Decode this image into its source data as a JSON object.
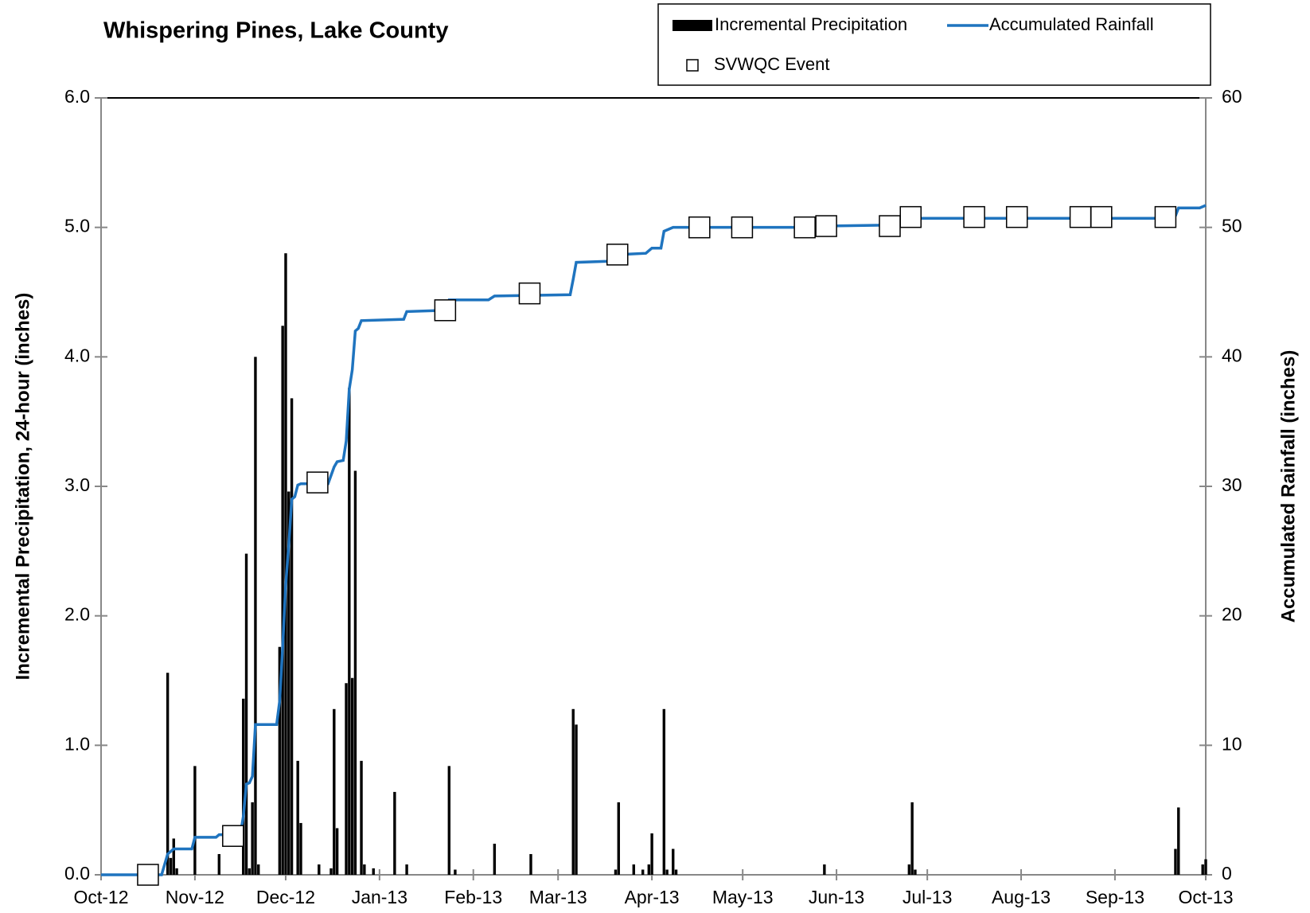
{
  "chart_data": {
    "type": "combo",
    "title": "Whispering Pines, Lake County",
    "y_label": "Incremental Precipitation, 24-hour (inches)",
    "y2_label": "Accumulated Rainfall (inches)",
    "xlim": [
      0,
      365
    ],
    "xticks": [
      {
        "value": 0,
        "label": "Oct-12"
      },
      {
        "value": 31,
        "label": "Nov-12"
      },
      {
        "value": 61,
        "label": "Dec-12"
      },
      {
        "value": 92,
        "label": "Jan-13"
      },
      {
        "value": 123,
        "label": "Feb-13"
      },
      {
        "value": 151,
        "label": "Mar-13"
      },
      {
        "value": 182,
        "label": "Apr-13"
      },
      {
        "value": 212,
        "label": "May-13"
      },
      {
        "value": 243,
        "label": "Jun-13"
      },
      {
        "value": 273,
        "label": "Jul-13"
      },
      {
        "value": 304,
        "label": "Aug-13"
      },
      {
        "value": 335,
        "label": "Sep-13"
      },
      {
        "value": 365,
        "label": "Oct-13"
      }
    ],
    "ylim": [
      0,
      6
    ],
    "yticks": [
      {
        "value": 0,
        "label": "0.0"
      },
      {
        "value": 1,
        "label": "1.0"
      },
      {
        "value": 2,
        "label": "2.0"
      },
      {
        "value": 3,
        "label": "3.0"
      },
      {
        "value": 4,
        "label": "4.0"
      },
      {
        "value": 5,
        "label": "5.0"
      },
      {
        "value": 6,
        "label": "6.0"
      }
    ],
    "y2lim": [
      0,
      60
    ],
    "y2ticks": [
      0,
      10,
      20,
      30,
      40,
      50,
      60
    ],
    "series": [
      {
        "name": "Incremental Precipitation",
        "type": "bar",
        "color": "#000000",
        "x": [
          22,
          23,
          24,
          25,
          31,
          39,
          47,
          48,
          49,
          50,
          51,
          52,
          59,
          60,
          61,
          62,
          63,
          65,
          66,
          72,
          76,
          77,
          78,
          81,
          82,
          83,
          84,
          86,
          87,
          90,
          97,
          101,
          115,
          117,
          130,
          142,
          156,
          157,
          170,
          171,
          176,
          179,
          181,
          182,
          186,
          187,
          189,
          190,
          239,
          267,
          268,
          269,
          355,
          356,
          364,
          365
        ],
        "values": [
          1.56,
          0.13,
          0.28,
          0.05,
          0.84,
          0.16,
          1.36,
          2.48,
          0.05,
          0.56,
          4.0,
          0.08,
          1.76,
          4.24,
          4.8,
          2.96,
          3.68,
          0.88,
          0.4,
          0.08,
          0.05,
          1.28,
          0.36,
          1.48,
          3.76,
          1.52,
          3.12,
          0.88,
          0.08,
          0.05,
          0.64,
          0.08,
          0.84,
          0.04,
          0.24,
          0.16,
          1.28,
          1.16,
          0.04,
          0.56,
          0.08,
          0.04,
          0.08,
          0.32,
          1.28,
          0.04,
          0.2,
          0.04,
          0.08,
          0.08,
          0.56,
          0.04,
          0.2,
          0.52,
          0.08,
          0.12
        ]
      },
      {
        "name": "Accumulated Rainfall",
        "type": "line",
        "axis": "y2",
        "color": "#1f74bf",
        "x": [
          0,
          20,
          22,
          24,
          30,
          31,
          38,
          39,
          46,
          47,
          48,
          49,
          50,
          51,
          58,
          59,
          60,
          61,
          62,
          63,
          64,
          65,
          66,
          75,
          77,
          78,
          80,
          81,
          82,
          83,
          84,
          85,
          86,
          100,
          101,
          114,
          115,
          128,
          130,
          155,
          156,
          157,
          170,
          171,
          180,
          182,
          185,
          186,
          189,
          238,
          239,
          267,
          268,
          354,
          355,
          356,
          363,
          365
        ],
        "values": [
          0,
          0,
          1.6,
          2.0,
          2.0,
          2.9,
          2.9,
          3.1,
          3.1,
          4.5,
          7.0,
          7.1,
          7.6,
          11.6,
          11.6,
          13.4,
          17.6,
          22.4,
          25.4,
          29.0,
          29.2,
          30.1,
          30.2,
          30.2,
          31.5,
          31.9,
          32.0,
          33.5,
          37.5,
          39.0,
          42.0,
          42.2,
          42.8,
          42.9,
          43.5,
          43.6,
          44.4,
          44.4,
          44.7,
          44.8,
          46.0,
          47.3,
          47.4,
          47.9,
          48.0,
          48.4,
          48.4,
          49.7,
          50.0,
          50.0,
          50.1,
          50.2,
          50.7,
          50.7,
          50.9,
          51.5,
          51.5,
          51.7
        ]
      },
      {
        "name": "SVWQC Event",
        "type": "marker",
        "axis": "y2",
        "color": "#ffffff",
        "x": [
          15.5,
          43.6,
          71.5,
          113.7,
          141.6,
          170.6,
          197.7,
          211.8,
          232.5,
          239.6,
          260.6,
          267.5,
          288.5,
          302.6,
          323.6,
          330.5,
          351.7
        ],
        "values": [
          0,
          3.0,
          30.3,
          43.6,
          44.9,
          47.9,
          50.0,
          50.0,
          50.0,
          50.1,
          50.1,
          50.8,
          50.8,
          50.8,
          50.8,
          50.8,
          50.8
        ]
      }
    ]
  }
}
